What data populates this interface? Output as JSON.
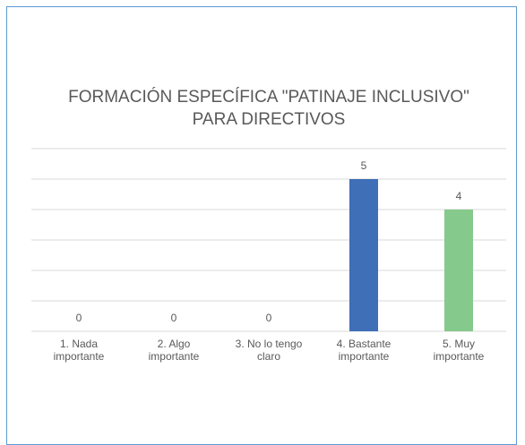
{
  "chart_data": {
    "type": "bar",
    "title": "FORMACIÓN ESPECÍFICA \"PATINAJE INCLUSIVO\" PARA DIRECTIVOS",
    "categories": [
      "1. Nada importante",
      "2. Algo importante",
      "3. No lo tengo claro",
      "4. Bastante importante",
      "5. Muy importante"
    ],
    "values": [
      0,
      0,
      0,
      5,
      4
    ],
    "colors": [
      "#3f6fb7",
      "#3f6fb7",
      "#3f6fb7",
      "#3f6fb7",
      "#86c98c"
    ],
    "ylim": [
      0,
      6
    ],
    "yticks": [
      0,
      1,
      2,
      3,
      4,
      5,
      6
    ],
    "grid": true
  }
}
